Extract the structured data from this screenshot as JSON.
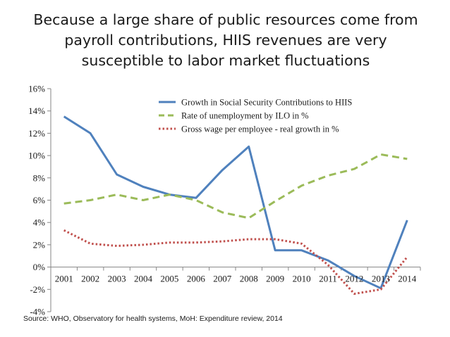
{
  "title_lines": [
    "Because a large share of public resources come from",
    "payroll contributions, HIIS revenues are very",
    "susceptible to labor market fluctuations"
  ],
  "source": "Source: WHO, Observatory for health systems, MoH: Expenditure review, 2014",
  "chart_data": {
    "type": "line",
    "title": "Because a large share of public resources come from payroll contributions, HIIS revenues are very susceptible to labor market fluctuations",
    "xlabel": "",
    "ylabel": "",
    "x": [
      "2001",
      "2002",
      "2003",
      "2004",
      "2005",
      "2006",
      "2007",
      "2008",
      "2009",
      "2010",
      "2011",
      "2012",
      "2013",
      "2014"
    ],
    "ylim": [
      -4,
      16
    ],
    "yticks": [
      -4,
      -2,
      0,
      2,
      4,
      6,
      8,
      10,
      12,
      14,
      16
    ],
    "ytick_labels": [
      "-4%",
      "-2%",
      "0%",
      "2%",
      "4%",
      "6%",
      "8%",
      "10%",
      "12%",
      "14%",
      "16%"
    ],
    "grid": false,
    "legend_position": "top-right",
    "series": [
      {
        "name": "Growth in Social Security Contributions to HIIS",
        "color": "#4f81bd",
        "style": "solid",
        "values": [
          13.5,
          12.0,
          8.3,
          7.2,
          6.5,
          6.2,
          8.7,
          10.8,
          1.5,
          1.5,
          0.6,
          -0.8,
          -1.9,
          4.2
        ]
      },
      {
        "name": "Rate of unemployment by ILO in %",
        "color": "#9bbb59",
        "style": "dashed",
        "values": [
          5.7,
          6.0,
          6.5,
          6.0,
          6.5,
          6.0,
          4.9,
          4.4,
          5.9,
          7.3,
          8.2,
          8.8,
          10.1,
          9.7
        ]
      },
      {
        "name": "Gross wage per employee - real growth in %",
        "color": "#c0504d",
        "style": "dotted",
        "values": [
          3.3,
          2.1,
          1.9,
          2.0,
          2.2,
          2.2,
          2.3,
          2.5,
          2.5,
          2.1,
          0.2,
          -2.4,
          -2.0,
          0.9
        ]
      }
    ]
  }
}
